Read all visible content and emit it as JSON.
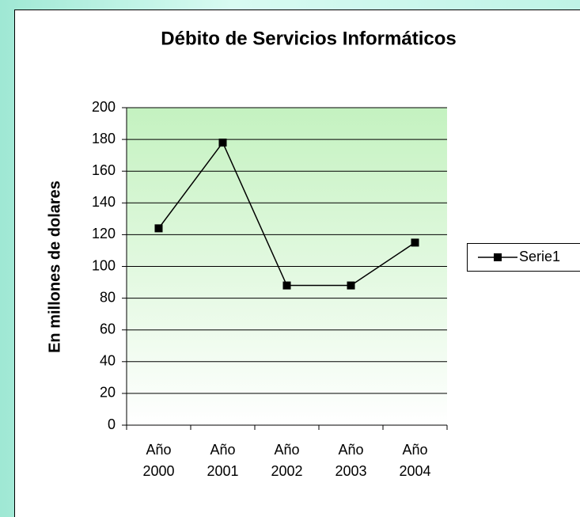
{
  "chart_data": {
    "type": "line",
    "title": "Débito de Servicios Informáticos",
    "y_label": "En millones de dolares",
    "categories": [
      "Año 2000",
      "Año 2001",
      "Año 2002",
      "Año 2003",
      "Año 2004"
    ],
    "series": [
      {
        "name": "Serie1",
        "color": "#000000",
        "values": [
          124,
          178,
          88,
          88,
          115
        ]
      }
    ],
    "ylim": [
      0,
      200
    ],
    "yticks": [
      0,
      20,
      40,
      60,
      80,
      100,
      120,
      140,
      160,
      180,
      200
    ],
    "grid": true,
    "legend": "right"
  }
}
